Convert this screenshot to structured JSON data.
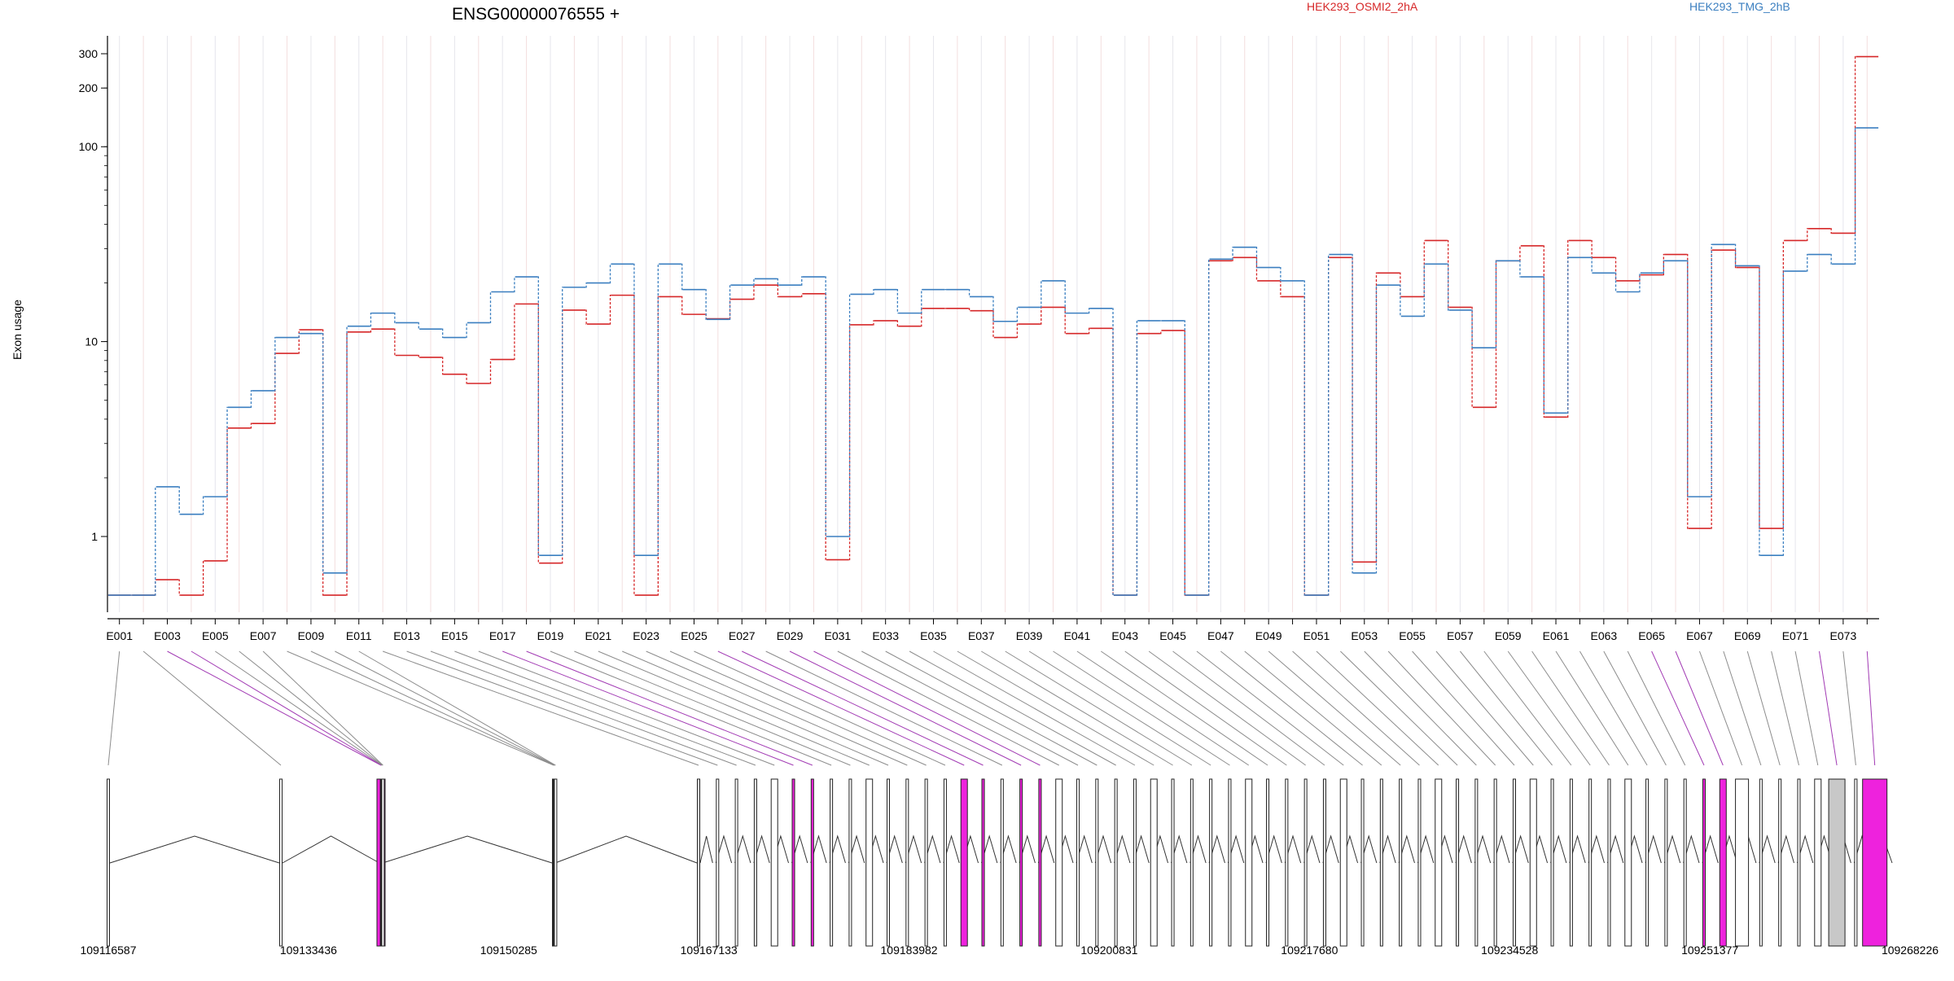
{
  "chart_data": {
    "type": "line",
    "title": "ENSG00000076555 +",
    "ylabel": "Exon usage",
    "xlabel": "",
    "yscale": "log",
    "ylim": [
      0.5,
      350
    ],
    "ytick_labels": [
      "1",
      "10",
      "100",
      "200",
      "300"
    ],
    "yticks": [
      1,
      10,
      100,
      200,
      300
    ],
    "grid": "vertical lines at each exon (faint)",
    "legend_placement": "top",
    "x_tick_labels": [
      "E001",
      "E003",
      "E005",
      "E007",
      "E009",
      "E011",
      "E013",
      "E015",
      "E017",
      "E019",
      "E021",
      "E023",
      "E025",
      "E027",
      "E029",
      "E031",
      "E033",
      "E035",
      "E037",
      "E039",
      "E041",
      "E043",
      "E045",
      "E047",
      "E049",
      "E051",
      "E053",
      "E055",
      "E057",
      "E059",
      "E061",
      "E063",
      "E065",
      "E067",
      "E069",
      "E071",
      "E073"
    ],
    "series": [
      {
        "name": "HEK293_OSMI2_2hA",
        "color": "#d62728",
        "values": [
          0.5,
          0.5,
          0.6,
          0.5,
          0.75,
          3.6,
          3.8,
          8.7,
          11.5,
          0.5,
          11.2,
          11.6,
          8.5,
          8.3,
          6.8,
          6.1,
          8.1,
          15.6,
          0.73,
          14.5,
          12.3,
          17.3,
          0.5,
          17,
          13.8,
          13.1,
          16.5,
          19.5,
          17,
          17.6,
          0.76,
          12.2,
          12.8,
          12,
          14.8,
          14.8,
          14.4,
          10.5,
          12.3,
          15,
          11,
          11.7,
          0.5,
          11,
          11.4,
          0.5,
          26,
          27,
          20.5,
          17,
          0.5,
          27,
          0.74,
          22.5,
          17,
          33,
          15,
          4.6,
          26,
          31,
          4.1,
          33,
          27,
          20.5,
          22,
          28,
          1.1,
          29.5,
          24,
          1.1,
          33,
          38,
          36,
          290
        ]
      },
      {
        "name": "HEK293_TMG_2hB",
        "color": "#3b7fc0",
        "values": [
          0.5,
          0.5,
          1.8,
          1.3,
          1.6,
          4.6,
          5.6,
          10.5,
          11,
          0.65,
          12,
          14,
          12.5,
          11.6,
          10.5,
          12.5,
          18,
          21.5,
          0.8,
          19,
          20,
          25,
          0.8,
          25,
          18.5,
          13,
          19.5,
          21,
          19.5,
          21.5,
          1,
          17.5,
          18.5,
          14,
          18.5,
          18.5,
          17,
          12.7,
          15,
          20.5,
          14,
          14.8,
          0.5,
          12.8,
          12.8,
          0.5,
          26.5,
          30.5,
          24,
          20.5,
          0.5,
          28,
          0.65,
          19.5,
          13.5,
          25,
          14.5,
          9.3,
          26,
          21.5,
          4.3,
          27,
          22.5,
          18,
          22.5,
          26,
          1.6,
          31.5,
          24.5,
          0.8,
          23,
          28,
          25,
          125
        ]
      }
    ]
  },
  "gene_model": {
    "coordinate_labels": [
      "109116587",
      "109133436",
      "109150285",
      "109167133",
      "109183982",
      "109200831",
      "109217680",
      "109234528",
      "109251377",
      "109268226"
    ]
  }
}
